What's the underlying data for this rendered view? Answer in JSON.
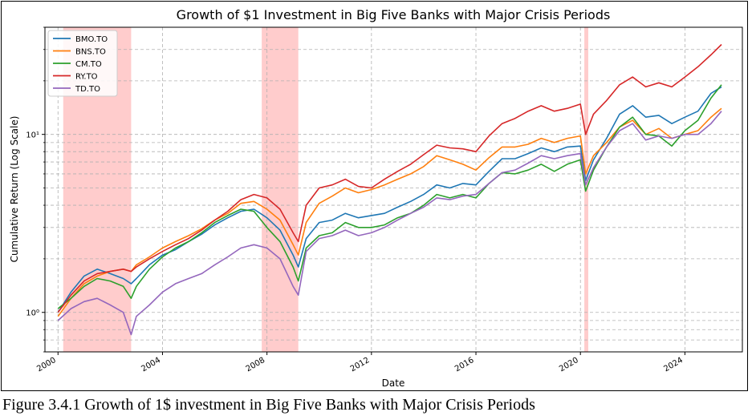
{
  "caption": "Figure 3.4.1 Growth of 1$ investment in Big Five Banks with Major Crisis Periods",
  "chart_data": {
    "type": "line",
    "title": "Growth of $1 Investment in Big Five Banks with Major Crisis Periods",
    "xlabel": "Date",
    "ylabel": "Cumulative Return (Log Scale)",
    "y_scale": "log",
    "ylim": [
      0.6,
      40
    ],
    "xlim": [
      1999.5,
      2026.2
    ],
    "x_ticks": [
      "2000",
      "2004",
      "2008",
      "2012",
      "2016",
      "2020",
      "2024"
    ],
    "y_ticks": [
      "10⁰",
      "10¹"
    ],
    "grid": true,
    "legend_position": "top-left",
    "crisis_periods": [
      {
        "start": 2000.2,
        "end": 2002.8
      },
      {
        "start": 2007.8,
        "end": 2009.2
      },
      {
        "start": 2020.15,
        "end": 2020.3
      }
    ],
    "series": [
      {
        "name": "BMO.TO",
        "color": "#1f77b4",
        "x": [
          2000.0,
          2000.5,
          2001.0,
          2001.5,
          2002.0,
          2002.5,
          2002.8,
          2003.0,
          2003.5,
          2004.0,
          2004.5,
          2005.0,
          2005.5,
          2006.0,
          2006.5,
          2007.0,
          2007.5,
          2008.0,
          2008.5,
          2009.0,
          2009.2,
          2009.5,
          2010.0,
          2010.5,
          2011.0,
          2011.5,
          2012.0,
          2012.5,
          2013.0,
          2013.5,
          2014.0,
          2014.5,
          2015.0,
          2015.5,
          2016.0,
          2016.5,
          2017.0,
          2017.5,
          2018.0,
          2018.5,
          2019.0,
          2019.5,
          2020.0,
          2020.2,
          2020.5,
          2021.0,
          2021.5,
          2022.0,
          2022.5,
          2023.0,
          2023.5,
          2024.0,
          2024.5,
          2025.0,
          2025.4
        ],
        "values": [
          1.0,
          1.3,
          1.6,
          1.75,
          1.65,
          1.55,
          1.45,
          1.55,
          1.85,
          2.1,
          2.25,
          2.5,
          2.75,
          3.1,
          3.4,
          3.7,
          3.8,
          3.4,
          2.9,
          2.1,
          1.8,
          2.6,
          3.2,
          3.3,
          3.6,
          3.4,
          3.5,
          3.6,
          3.9,
          4.2,
          4.6,
          5.2,
          5.0,
          5.3,
          5.2,
          6.2,
          7.3,
          7.3,
          7.8,
          8.4,
          8.0,
          8.5,
          8.6,
          5.5,
          7.2,
          9.5,
          13.0,
          14.5,
          12.5,
          12.8,
          11.5,
          12.5,
          13.5,
          17.0,
          18.5
        ]
      },
      {
        "name": "BNS.TO",
        "color": "#ff7f0e",
        "x": [
          2000.0,
          2000.5,
          2001.0,
          2001.5,
          2002.0,
          2002.5,
          2002.8,
          2003.0,
          2003.5,
          2004.0,
          2004.5,
          2005.0,
          2005.5,
          2006.0,
          2006.5,
          2007.0,
          2007.5,
          2008.0,
          2008.5,
          2009.0,
          2009.2,
          2009.5,
          2010.0,
          2010.5,
          2011.0,
          2011.5,
          2012.0,
          2012.5,
          2013.0,
          2013.5,
          2014.0,
          2014.5,
          2015.0,
          2015.5,
          2016.0,
          2016.5,
          2017.0,
          2017.5,
          2018.0,
          2018.5,
          2019.0,
          2019.5,
          2020.0,
          2020.2,
          2020.5,
          2021.0,
          2021.5,
          2022.0,
          2022.5,
          2023.0,
          2023.5,
          2024.0,
          2024.5,
          2025.0,
          2025.4
        ],
        "values": [
          0.95,
          1.2,
          1.45,
          1.6,
          1.7,
          1.75,
          1.7,
          1.85,
          2.05,
          2.3,
          2.5,
          2.7,
          2.95,
          3.3,
          3.6,
          4.1,
          4.2,
          3.8,
          3.3,
          2.4,
          2.1,
          3.2,
          4.1,
          4.5,
          5.0,
          4.7,
          4.9,
          5.2,
          5.6,
          6.0,
          6.6,
          7.6,
          7.2,
          6.8,
          6.3,
          7.4,
          8.5,
          8.5,
          8.8,
          9.5,
          9.0,
          9.5,
          9.8,
          6.0,
          7.6,
          9.0,
          11.0,
          12.0,
          10.0,
          10.8,
          9.5,
          10.0,
          10.5,
          12.5,
          14.0
        ]
      },
      {
        "name": "CM.TO",
        "color": "#2ca02c",
        "x": [
          2000.0,
          2000.5,
          2001.0,
          2001.5,
          2002.0,
          2002.5,
          2002.8,
          2003.0,
          2003.5,
          2004.0,
          2004.5,
          2005.0,
          2005.5,
          2006.0,
          2006.5,
          2007.0,
          2007.5,
          2008.0,
          2008.5,
          2009.0,
          2009.2,
          2009.5,
          2010.0,
          2010.5,
          2011.0,
          2011.5,
          2012.0,
          2012.5,
          2013.0,
          2013.5,
          2014.0,
          2014.5,
          2015.0,
          2015.5,
          2016.0,
          2016.5,
          2017.0,
          2017.5,
          2018.0,
          2018.5,
          2019.0,
          2019.5,
          2020.0,
          2020.2,
          2020.5,
          2021.0,
          2021.5,
          2022.0,
          2022.5,
          2023.0,
          2023.5,
          2024.0,
          2024.5,
          2025.0,
          2025.4
        ],
        "values": [
          1.05,
          1.2,
          1.4,
          1.55,
          1.5,
          1.4,
          1.2,
          1.4,
          1.75,
          2.05,
          2.3,
          2.5,
          2.8,
          3.2,
          3.5,
          3.8,
          3.7,
          3.0,
          2.5,
          1.8,
          1.5,
          2.3,
          2.7,
          2.8,
          3.2,
          3.0,
          3.0,
          3.1,
          3.4,
          3.6,
          4.0,
          4.6,
          4.4,
          4.6,
          4.4,
          5.3,
          6.1,
          6.0,
          6.3,
          6.8,
          6.2,
          6.8,
          7.2,
          4.8,
          6.3,
          8.5,
          11.0,
          12.5,
          10.0,
          9.8,
          8.6,
          10.5,
          12.0,
          16.0,
          19.0
        ]
      },
      {
        "name": "RY.TO",
        "color": "#d62728",
        "x": [
          2000.0,
          2000.5,
          2001.0,
          2001.5,
          2002.0,
          2002.5,
          2002.8,
          2003.0,
          2003.5,
          2004.0,
          2004.5,
          2005.0,
          2005.5,
          2006.0,
          2006.5,
          2007.0,
          2007.5,
          2008.0,
          2008.5,
          2009.0,
          2009.2,
          2009.5,
          2010.0,
          2010.5,
          2011.0,
          2011.5,
          2012.0,
          2012.5,
          2013.0,
          2013.5,
          2014.0,
          2014.5,
          2015.0,
          2015.5,
          2016.0,
          2016.5,
          2017.0,
          2017.5,
          2018.0,
          2018.5,
          2019.0,
          2019.5,
          2020.0,
          2020.2,
          2020.5,
          2021.0,
          2021.5,
          2022.0,
          2022.5,
          2023.0,
          2023.5,
          2024.0,
          2024.5,
          2025.0,
          2025.4
        ],
        "values": [
          1.0,
          1.25,
          1.5,
          1.65,
          1.7,
          1.75,
          1.7,
          1.8,
          2.0,
          2.2,
          2.4,
          2.6,
          2.9,
          3.3,
          3.7,
          4.3,
          4.6,
          4.4,
          3.8,
          2.8,
          2.5,
          4.0,
          5.0,
          5.2,
          5.6,
          5.1,
          5.0,
          5.6,
          6.2,
          6.8,
          7.7,
          8.7,
          8.4,
          8.3,
          8.0,
          9.8,
          11.5,
          12.3,
          13.5,
          14.5,
          13.5,
          14.0,
          14.8,
          10.0,
          13.0,
          15.5,
          19.0,
          21.0,
          18.5,
          19.5,
          18.5,
          21.0,
          24.0,
          28.0,
          32.0
        ]
      },
      {
        "name": "TD.TO",
        "color": "#9467bd",
        "x": [
          2000.0,
          2000.5,
          2001.0,
          2001.5,
          2002.0,
          2002.5,
          2002.8,
          2003.0,
          2003.5,
          2004.0,
          2004.5,
          2005.0,
          2005.5,
          2006.0,
          2006.5,
          2007.0,
          2007.5,
          2008.0,
          2008.5,
          2009.0,
          2009.2,
          2009.5,
          2010.0,
          2010.5,
          2011.0,
          2011.5,
          2012.0,
          2012.5,
          2013.0,
          2013.5,
          2014.0,
          2014.5,
          2015.0,
          2015.5,
          2016.0,
          2016.5,
          2017.0,
          2017.5,
          2018.0,
          2018.5,
          2019.0,
          2019.5,
          2020.0,
          2020.2,
          2020.5,
          2021.0,
          2021.5,
          2022.0,
          2022.5,
          2023.0,
          2023.5,
          2024.0,
          2024.5,
          2025.0,
          2025.4
        ],
        "values": [
          0.9,
          1.05,
          1.15,
          1.2,
          1.1,
          1.0,
          0.75,
          0.95,
          1.1,
          1.3,
          1.45,
          1.55,
          1.65,
          1.85,
          2.05,
          2.3,
          2.4,
          2.3,
          2.0,
          1.4,
          1.25,
          2.2,
          2.6,
          2.7,
          2.9,
          2.7,
          2.8,
          3.0,
          3.3,
          3.6,
          3.9,
          4.4,
          4.3,
          4.5,
          4.6,
          5.3,
          6.1,
          6.3,
          6.9,
          7.6,
          7.3,
          7.6,
          7.8,
          5.2,
          6.5,
          8.5,
          10.5,
          11.5,
          9.3,
          9.8,
          9.5,
          10.0,
          10.0,
          11.5,
          13.5
        ]
      }
    ]
  }
}
